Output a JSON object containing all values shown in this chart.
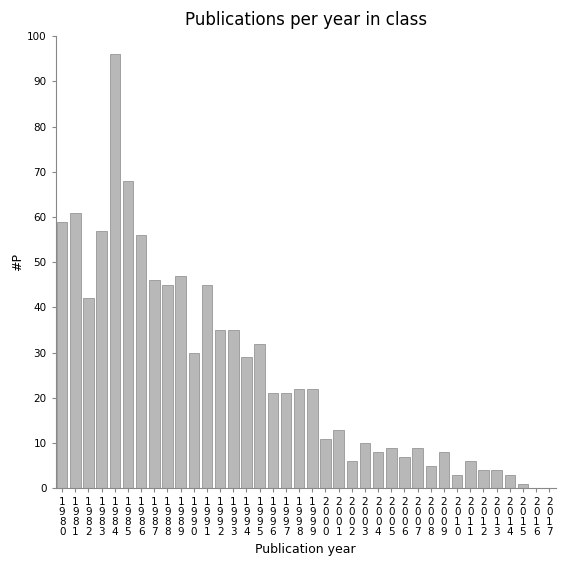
{
  "title": "Publications per year in class",
  "xlabel": "Publication year",
  "ylabel": "#P",
  "years": [
    "1980",
    "1981",
    "1982",
    "1983",
    "1984",
    "1985",
    "1986",
    "1987",
    "1988",
    "1989",
    "1990",
    "1991",
    "1992",
    "1993",
    "1994",
    "1995",
    "1996",
    "1997",
    "1998",
    "1999",
    "2000",
    "2001",
    "2002",
    "2003",
    "2004",
    "2005",
    "2006",
    "2007",
    "2008",
    "2009",
    "2010",
    "2011",
    "2012",
    "2013",
    "2014",
    "2015",
    "2016",
    "2017"
  ],
  "values": [
    59,
    61,
    42,
    57,
    96,
    68,
    56,
    46,
    45,
    47,
    30,
    45,
    35,
    35,
    29,
    32,
    21,
    21,
    22,
    22,
    11,
    13,
    6,
    10,
    8,
    9,
    7,
    9,
    5,
    8,
    3,
    6,
    4,
    4,
    3,
    1,
    0,
    0
  ],
  "bar_color": "#b8b8b8",
  "bar_edgecolor": "#888888",
  "ylim": [
    0,
    100
  ],
  "yticks": [
    0,
    10,
    20,
    30,
    40,
    50,
    60,
    70,
    80,
    90,
    100
  ],
  "background_color": "#ffffff",
  "title_fontsize": 12,
  "label_fontsize": 9,
  "tick_fontsize": 7.5
}
